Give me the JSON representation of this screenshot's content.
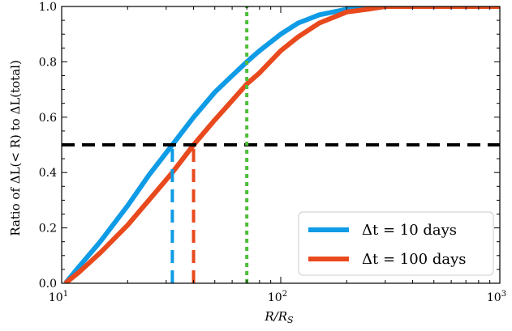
{
  "chart_data": {
    "type": "line",
    "xlabel": "R/R",
    "xlabel_sub": "S",
    "ylabel": "Ratio of ΔL(< R) to ΔL(total)",
    "xscale": "log",
    "xlim": [
      10,
      1000
    ],
    "ylim": [
      0.0,
      1.0
    ],
    "x_ticks": [
      {
        "value": 10,
        "base": "10",
        "exp": "1"
      },
      {
        "value": 100,
        "base": "10",
        "exp": "2"
      },
      {
        "value": 1000,
        "base": "10",
        "exp": "3"
      }
    ],
    "y_ticks": [
      "0.0",
      "0.2",
      "0.4",
      "0.6",
      "0.8",
      "1.0"
    ],
    "legend_position": "bottom-right",
    "series": [
      {
        "name": "Δt = 10 days",
        "color": "#0f9be6",
        "x": [
          10.4,
          12,
          15,
          20,
          25,
          32,
          40,
          50,
          60,
          70,
          80,
          100,
          120,
          150,
          200,
          250,
          300,
          400,
          1000
        ],
        "y": [
          0.0,
          0.06,
          0.15,
          0.28,
          0.39,
          0.5,
          0.6,
          0.69,
          0.75,
          0.8,
          0.84,
          0.9,
          0.94,
          0.97,
          0.99,
          1.0,
          1.0,
          1.0,
          1.0
        ]
      },
      {
        "name": "Δt = 100 days",
        "color": "#e8491d",
        "x": [
          10.4,
          12,
          15,
          20,
          25,
          32,
          40,
          50,
          60,
          70,
          80,
          100,
          120,
          150,
          200,
          250,
          300,
          400,
          1000
        ],
        "y": [
          0.0,
          0.04,
          0.11,
          0.21,
          0.3,
          0.4,
          0.5,
          0.59,
          0.66,
          0.72,
          0.76,
          0.84,
          0.89,
          0.94,
          0.98,
          0.99,
          1.0,
          1.0,
          1.0
        ]
      }
    ],
    "reference_lines": [
      {
        "kind": "horizontal",
        "value": 0.5,
        "color": "#000000",
        "style": "dashed"
      },
      {
        "kind": "vertical",
        "value": 32,
        "y_top": 0.5,
        "color": "#0f9be6",
        "style": "dashed"
      },
      {
        "kind": "vertical",
        "value": 40,
        "y_top": 0.5,
        "color": "#e8491d",
        "style": "dashed"
      },
      {
        "kind": "vertical",
        "value": 70,
        "y_top": 1.0,
        "color": "#4dbf3a",
        "style": "dotted"
      }
    ]
  }
}
